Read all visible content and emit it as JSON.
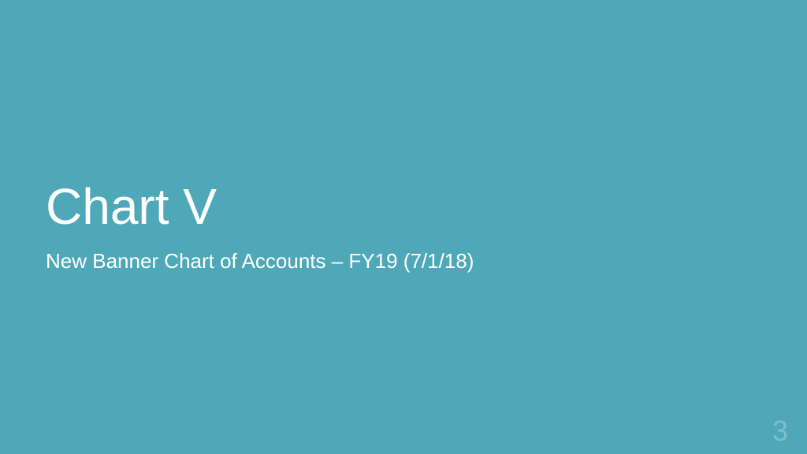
{
  "slide": {
    "title": "Chart V",
    "subtitle": "New Banner Chart of Accounts – FY19 (7/1/18)",
    "page_number": "3",
    "background_color": "#4fa8b8",
    "title_color": "#ffffff",
    "subtitle_color": "#ffffff",
    "page_number_color": "#7fbec9",
    "title_fontsize": 64,
    "subtitle_fontsize": 26,
    "page_number_fontsize": 36
  }
}
